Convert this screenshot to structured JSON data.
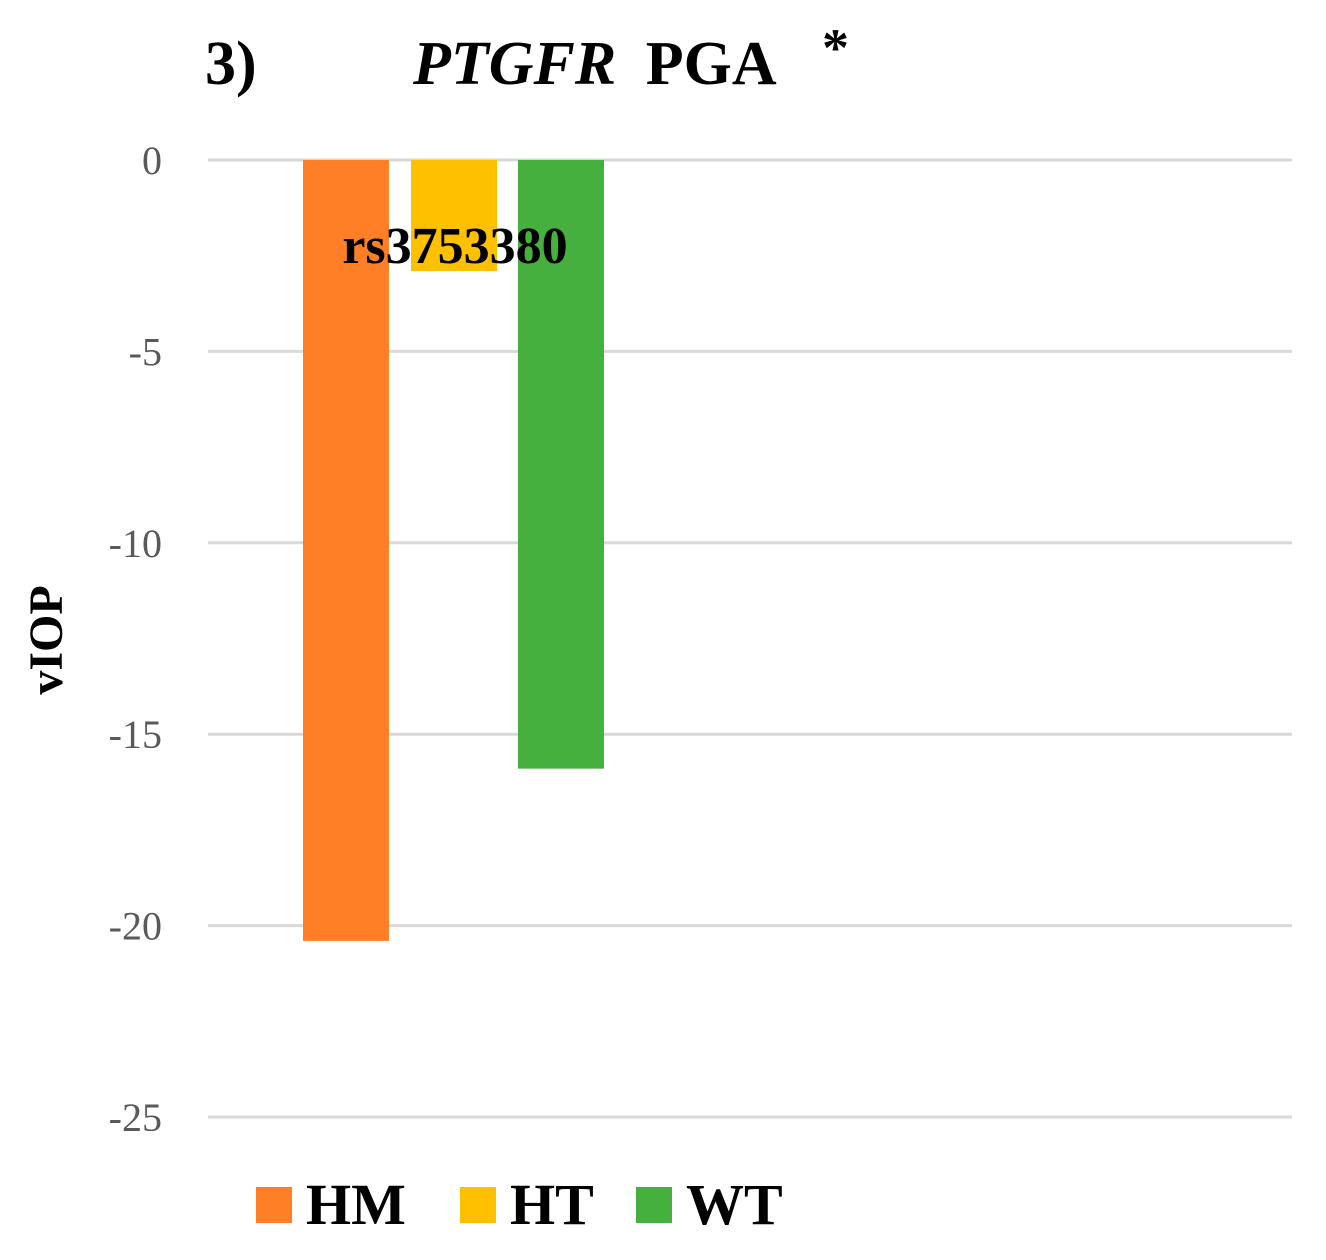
{
  "chart_data": {
    "type": "bar",
    "panel_label": "3)",
    "title_gene": "PTGFR",
    "title_drug": "PGA",
    "title_marker": "*",
    "annotation": "rs3753380",
    "categories": [
      "HM",
      "HT",
      "WT"
    ],
    "values": [
      -20.4,
      -2.9,
      -15.9
    ],
    "ylabel": "vIOP",
    "xlabel": "",
    "ylim": [
      -25,
      0
    ],
    "yticks": [
      0,
      -5,
      -10,
      -15,
      -20,
      -25
    ],
    "grid": true,
    "legend_position": "bottom",
    "colors": {
      "HM": "#FF7F27",
      "HT": "#FFC000",
      "WT": "#46B03E"
    }
  }
}
